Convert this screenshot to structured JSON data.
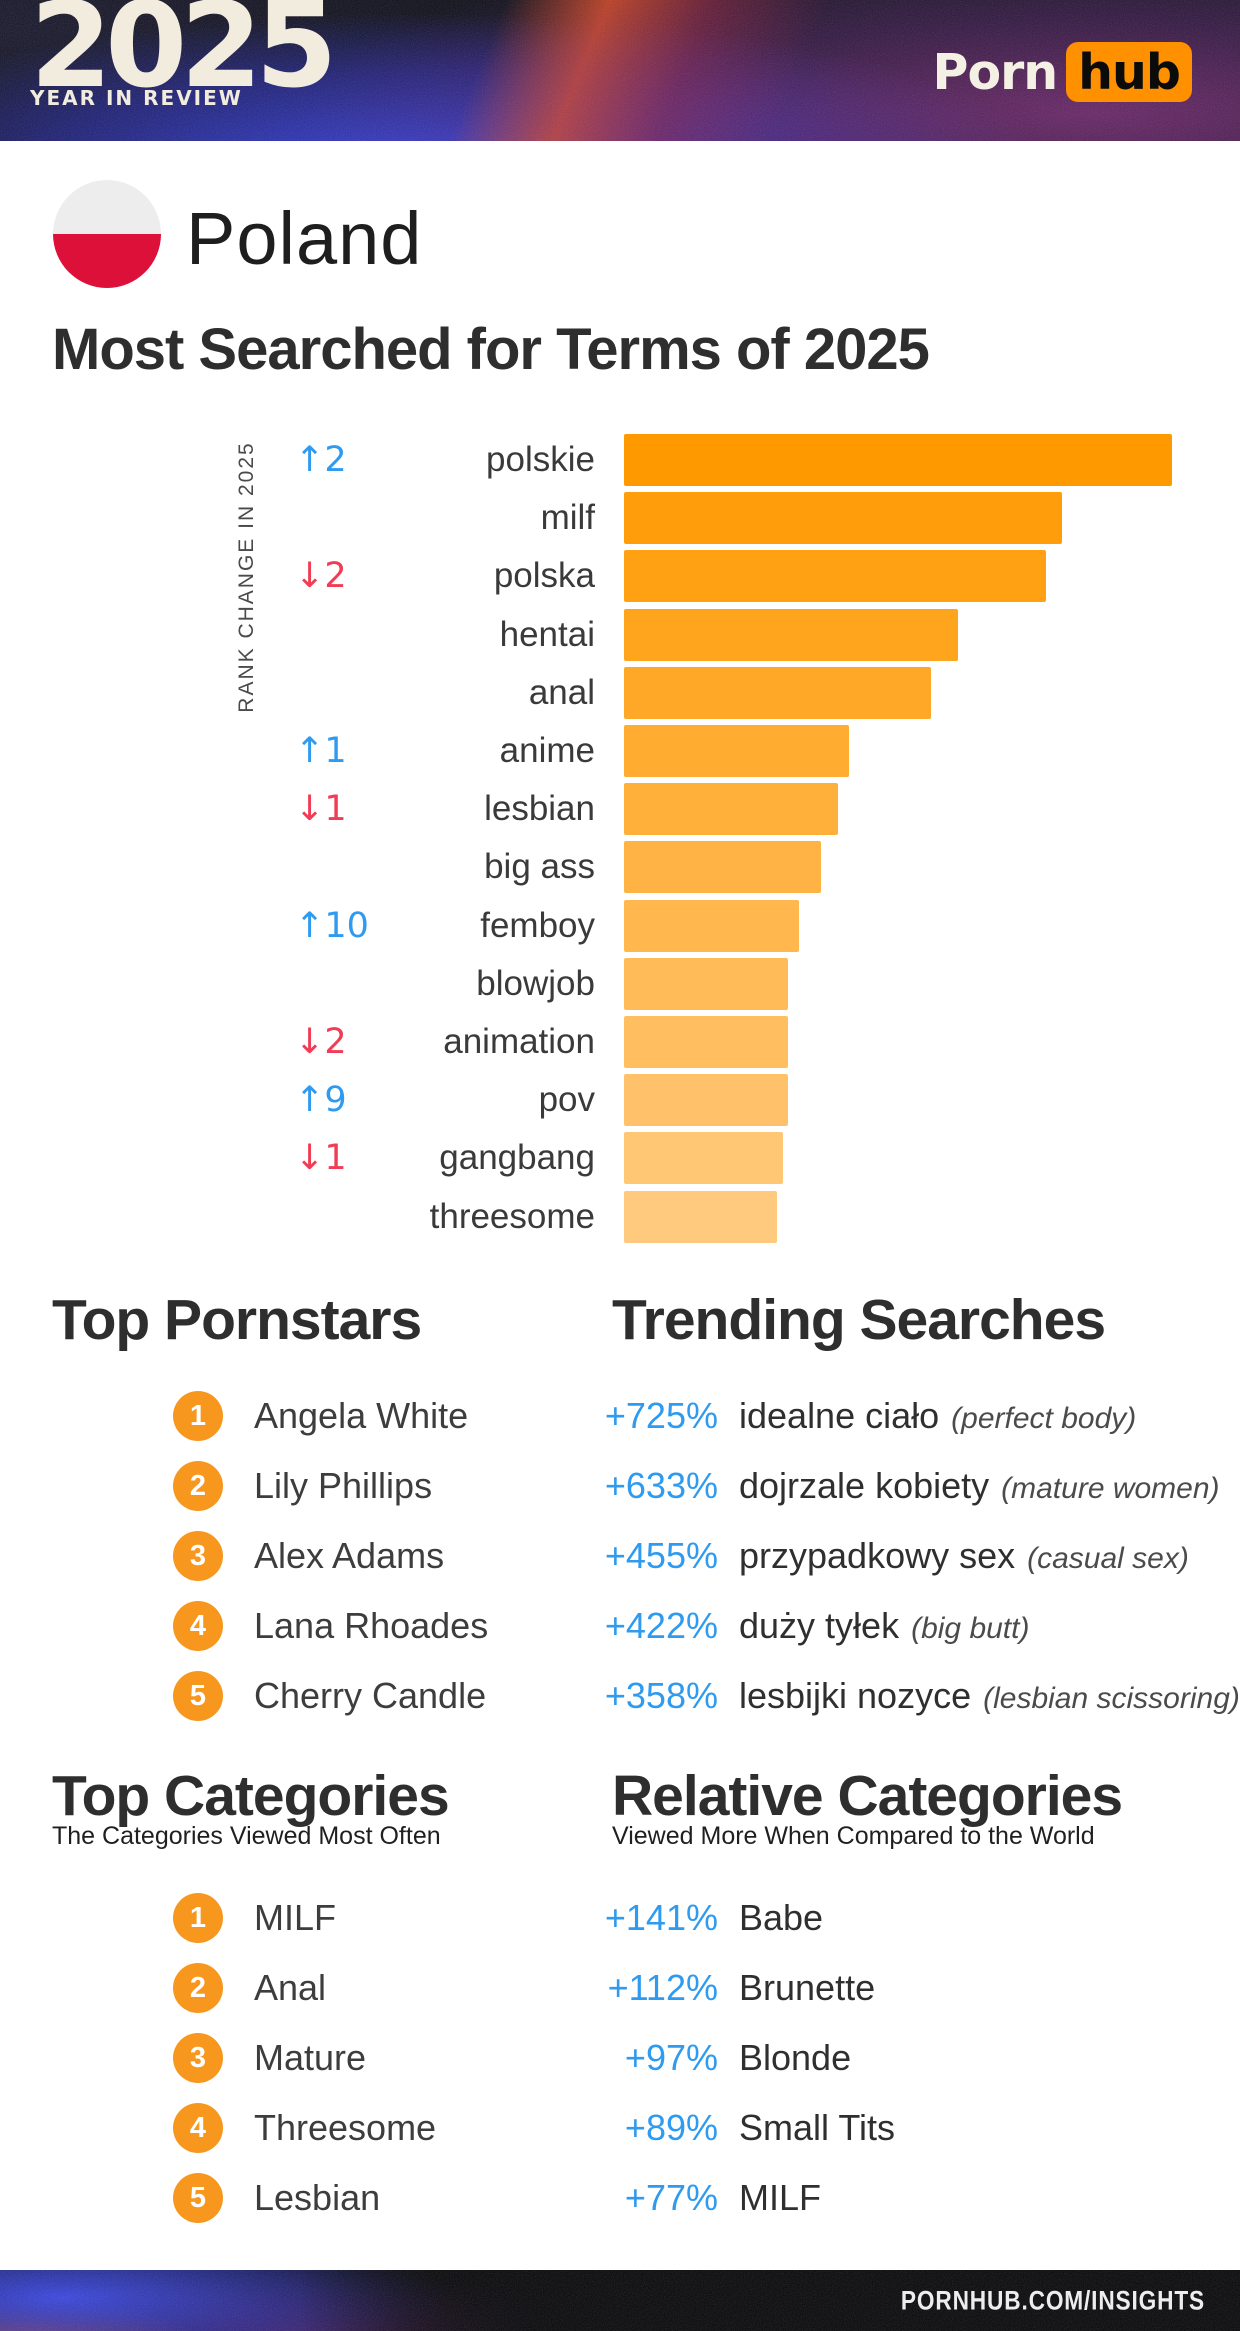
{
  "header": {
    "logo_year": "2025",
    "logo_tagline": "YEAR IN REVIEW",
    "brand_porn": "Porn",
    "brand_hub": "hub"
  },
  "country": {
    "name": "Poland",
    "flag_top_color": "#EDEDED",
    "flag_bottom_color": "#DD1039"
  },
  "page_title": "Most Searched for Terms of 2025",
  "chart_data": {
    "type": "bar",
    "orientation": "horizontal",
    "title": "Most Searched for Terms of 2025",
    "axis_label": "RANK CHANGE IN 2025",
    "xlim": [
      0,
      100
    ],
    "grid": false,
    "up_color": "#2E9BF0",
    "down_color": "#F23B55",
    "rows": [
      {
        "term": "polskie",
        "rank_change": "↑2",
        "direction": "up",
        "value": 100,
        "color": "#FF9900"
      },
      {
        "term": "milf",
        "rank_change": "",
        "direction": "",
        "value": 80,
        "color": "#FF9D0A"
      },
      {
        "term": "polska",
        "rank_change": "↓2",
        "direction": "down",
        "value": 77,
        "color": "#FFA113"
      },
      {
        "term": "hentai",
        "rank_change": "",
        "direction": "",
        "value": 61,
        "color": "#FFA41D"
      },
      {
        "term": "anal",
        "rank_change": "",
        "direction": "",
        "value": 56,
        "color": "#FFA827"
      },
      {
        "term": "anime",
        "rank_change": "↑1",
        "direction": "up",
        "value": 41,
        "color": "#FFAC30"
      },
      {
        "term": "lesbian",
        "rank_change": "↓1",
        "direction": "down",
        "value": 39,
        "color": "#FFB03A"
      },
      {
        "term": "big ass",
        "rank_change": "",
        "direction": "",
        "value": 36,
        "color": "#FFB344"
      },
      {
        "term": "femboy",
        "rank_change": "↑10",
        "direction": "up",
        "value": 32,
        "color": "#FFB74E"
      },
      {
        "term": "blowjob",
        "rank_change": "",
        "direction": "",
        "value": 30,
        "color": "#FFBB57"
      },
      {
        "term": "animation",
        "rank_change": "↓2",
        "direction": "down",
        "value": 30,
        "color": "#FFBF61"
      },
      {
        "term": "pov",
        "rank_change": "↑9",
        "direction": "up",
        "value": 30,
        "color": "#FFC26B"
      },
      {
        "term": "gangbang",
        "rank_change": "↓1",
        "direction": "down",
        "value": 29,
        "color": "#FFC674"
      },
      {
        "term": "threesome",
        "rank_change": "",
        "direction": "",
        "value": 28,
        "color": "#FFCA7E"
      }
    ]
  },
  "top_pornstars": {
    "title": "Top Pornstars",
    "items": [
      {
        "rank": "1",
        "name": "Angela White"
      },
      {
        "rank": "2",
        "name": "Lily Phillips"
      },
      {
        "rank": "3",
        "name": "Alex Adams"
      },
      {
        "rank": "4",
        "name": "Lana Rhoades"
      },
      {
        "rank": "5",
        "name": "Cherry Candle"
      }
    ]
  },
  "trending_searches": {
    "title": "Trending Searches",
    "items": [
      {
        "percent": "+725%",
        "term": "idealne ciało",
        "translation": "(perfect body)"
      },
      {
        "percent": "+633%",
        "term": "dojrzale kobiety",
        "translation": "(mature women)"
      },
      {
        "percent": "+455%",
        "term": "przypadkowy sex",
        "translation": "(casual sex)"
      },
      {
        "percent": "+422%",
        "term": "duży tyłek",
        "translation": "(big butt)"
      },
      {
        "percent": "+358%",
        "term": "lesbijki nozyce",
        "translation": "(lesbian scissoring)"
      }
    ]
  },
  "top_categories": {
    "title": "Top Categories",
    "subtitle": "The Categories Viewed Most Often",
    "items": [
      {
        "rank": "1",
        "name": "MILF"
      },
      {
        "rank": "2",
        "name": "Anal"
      },
      {
        "rank": "3",
        "name": "Mature"
      },
      {
        "rank": "4",
        "name": "Threesome"
      },
      {
        "rank": "5",
        "name": "Lesbian"
      }
    ]
  },
  "relative_categories": {
    "title": "Relative Categories",
    "subtitle": "Viewed More When Compared to the World",
    "items": [
      {
        "percent": "+141%",
        "name": "Babe"
      },
      {
        "percent": "+112%",
        "name": "Brunette"
      },
      {
        "percent": "+97%",
        "name": "Blonde"
      },
      {
        "percent": "+89%",
        "name": "Small Tits"
      },
      {
        "percent": "+77%",
        "name": "MILF"
      }
    ]
  },
  "footer": {
    "url": "PORNHUB.COM/INSIGHTS"
  },
  "colors": {
    "accent_orange": "#F7971D",
    "logo_orange": "#FF9000",
    "blue": "#2E9BF0",
    "red": "#F23B55",
    "bar_start": "#FF9900",
    "bar_end": "#FFCA7E",
    "cream": "#F2ECDF"
  }
}
